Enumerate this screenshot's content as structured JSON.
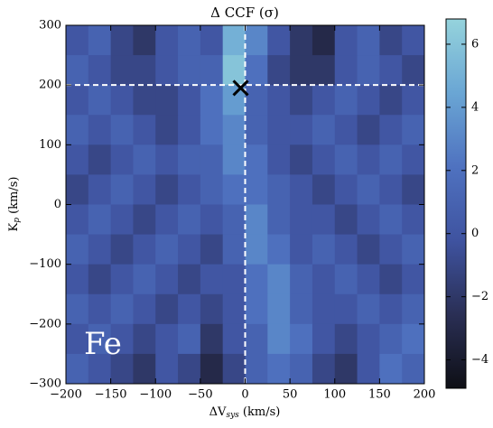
{
  "chart_data": {
    "type": "heatmap",
    "title": "Δ CCF (σ)",
    "xlabel": {
      "main": "ΔV",
      "sub": "sys",
      "unit": " (km/s)"
    },
    "ylabel": {
      "main": "K",
      "sub": "p",
      "unit": " (km/s)"
    },
    "xlim": [
      -200,
      200
    ],
    "ylim": [
      -300,
      300
    ],
    "xticks": [
      {
        "value": -200,
        "label": "−200"
      },
      {
        "value": -150,
        "label": "−150"
      },
      {
        "value": -100,
        "label": "−100"
      },
      {
        "value": -50,
        "label": "−50"
      },
      0,
      50,
      100,
      150,
      200
    ],
    "yticks": [
      {
        "value": -300,
        "label": "−300"
      },
      {
        "value": -200,
        "label": "−200"
      },
      {
        "value": -100,
        "label": "−100"
      },
      0,
      100,
      200,
      300
    ],
    "clim": [
      -4.9,
      6.8
    ],
    "cticks": [
      {
        "value": -4,
        "label": "−4"
      },
      {
        "value": -2,
        "label": "−2"
      },
      0,
      2,
      4,
      6
    ],
    "colormap": [
      "#0e0f15",
      "#2a2f55",
      "#3f53a0",
      "#4f72c0",
      "#6aa6d4",
      "#95d3dc"
    ],
    "z": [
      [
        0,
        1,
        -1,
        -2,
        0,
        1,
        0,
        5,
        3,
        0,
        -2,
        -3,
        0,
        1,
        -1,
        0
      ],
      [
        1,
        0,
        -1,
        -1,
        0,
        1,
        1,
        6,
        2,
        -1,
        -2,
        -2,
        0,
        1,
        0,
        -1
      ],
      [
        0,
        1,
        0,
        -1,
        -1,
        0,
        2,
        4,
        1,
        0,
        -1,
        0,
        1,
        0,
        -1,
        0
      ],
      [
        1,
        0,
        1,
        0,
        -1,
        0,
        2,
        3,
        1,
        0,
        0,
        1,
        0,
        -1,
        0,
        1
      ],
      [
        0,
        -1,
        0,
        1,
        0,
        1,
        1,
        3,
        2,
        0,
        -1,
        0,
        1,
        0,
        1,
        0
      ],
      [
        -1,
        0,
        1,
        0,
        -1,
        0,
        1,
        2,
        2,
        1,
        0,
        -1,
        0,
        1,
        0,
        -1
      ],
      [
        0,
        1,
        0,
        -1,
        0,
        1,
        0,
        1,
        3,
        1,
        0,
        0,
        -1,
        0,
        1,
        0
      ],
      [
        1,
        0,
        -1,
        0,
        1,
        0,
        -1,
        1,
        3,
        2,
        0,
        1,
        0,
        -1,
        0,
        1
      ],
      [
        0,
        -1,
        0,
        1,
        0,
        -1,
        0,
        0,
        2,
        3,
        1,
        0,
        1,
        0,
        -1,
        0
      ],
      [
        1,
        0,
        1,
        0,
        -1,
        0,
        -1,
        0,
        2,
        3,
        1,
        0,
        0,
        1,
        0,
        1
      ],
      [
        0,
        1,
        0,
        -1,
        0,
        1,
        -2,
        0,
        1,
        3,
        2,
        0,
        -1,
        0,
        1,
        2
      ],
      [
        1,
        0,
        -1,
        -2,
        0,
        -1,
        -3,
        -1,
        1,
        2,
        1,
        -1,
        -2,
        0,
        2,
        1
      ]
    ],
    "guides": {
      "x": 0,
      "y": 200,
      "color": "#ffffff"
    },
    "marker": {
      "x": -5,
      "y": 195,
      "color": "#000000"
    },
    "annotation": "Fe"
  }
}
